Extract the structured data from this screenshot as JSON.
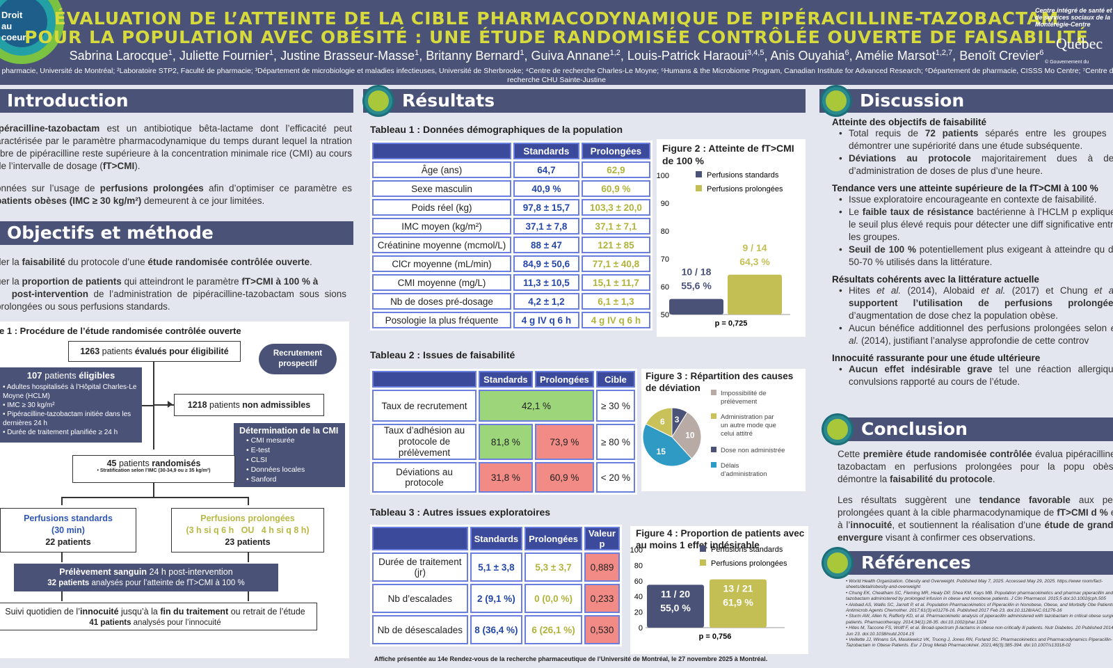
{
  "header": {
    "logo": "Droit\nau\ncoeur",
    "title_line1": "ÉVALUATION DE L’ATTEINTE DE LA CIBLE PHARMACODYNAMIQUE DE PIPÉRACILLINE-TAZOBACTAM",
    "title_line2": "POUR LA POPULATION AVEC OBÉSITÉ : UNE ÉTUDE RANDOMISÉE CONTRÔLÉE OUVERTE DE FAISABILITÉ",
    "authors": [
      {
        "name": "Sabrina Larocque",
        "sup": "1"
      },
      {
        "name": "Juliette Fournier",
        "sup": "1"
      },
      {
        "name": "Justine Brasseur-Masse",
        "sup": "1"
      },
      {
        "name": "Britanny Bernard",
        "sup": "1"
      },
      {
        "name": "Guiva Annane",
        "sup": "1,2"
      },
      {
        "name": "Louis-Patrick Haraoui",
        "sup": "3,4,5"
      },
      {
        "name": "Anis Ouyahia",
        "sup": "6"
      },
      {
        "name": "Amélie Marsot",
        "sup": "1,2,7"
      },
      {
        "name": "Benoît Crevier",
        "sup": "6"
      }
    ],
    "affiliations": "e pharmacie, Université de Montréal; ²Laboratoire STP2, Faculté de pharmacie; ³Département de microbiologie et maladies infectieuses, Université de Sherbrooke; ⁴Centre de recherche Charles-Le Moyne; ⁵Humans & the Microbiome Program, Canadian Institute for Advanced Research; ⁶Département de pharmacie, CISSS Mo Centre; ⁷Centre de recherche CHU Sainte-Justine",
    "cisss": "Centre intégré de santé et de services sociaux de la Montérégie-Centre",
    "quebec": "Québec",
    "gov": "© Gouvernement du"
  },
  "intro": {
    "heading": "Introduction",
    "p1_pre": "ipéracilline-tazobactam",
    "p1_mid": " est un antibiotique bêta-lactame dont l’efficacité peut aractérisée par le paramètre pharmacodynamique du temps durant lequel la ntration libre de pipéracilline reste supérieure à la concentration minimale rice (CMI) au cours de l’intervalle de dosage (",
    "p1_bold": "fT>CMI",
    "p1_end": ").",
    "p2_a": "onnées sur l’usage de ",
    "p2_b": "perfusions prolongées",
    "p2_c": " afin d’optimiser ce paramètre es ",
    "p2_d": "patients obèses (IMC ≥ 30 kg/m²)",
    "p2_e": " demeurent à ce jour limitées."
  },
  "objectives": {
    "heading": "Objectifs et méthode",
    "o1_a": "der la ",
    "o1_b": "faisabilité",
    "o1_c": " du protocole d’une ",
    "o1_d": "étude randomisée contrôlée ouverte",
    "o1_e": ".",
    "o2_a": "uer la ",
    "o2_b": "proportion de patients",
    "o2_c": " qui atteindront le paramètre  ",
    "o2_d": "fT>CMI à 100 % à",
    "o2_e": "post-intervention",
    "o2_f": " de l’administration de pipéracilline-tazobactam sous sions prolongées ou sous perfusions standards."
  },
  "figure1": {
    "caption": "re 1 : Procédure de l’étude randomisée contrôlée ouverte",
    "evaluated_n": "1263",
    "evaluated_a": " patients ",
    "evaluated_b": "évalués pour éligibilité",
    "recruit": "Recrutement prospectif",
    "eligible_n": "107",
    "eligible_a": " patients ",
    "eligible_b": "éligibles",
    "criteria": [
      "Adultes hospitalisés à l’Hôpital Charles-Le Moyne (HCLM)",
      "IMC ≥ 30 kg/m²",
      "Pipéracilline-tazobactam initiée dans les dernières 24 h",
      "Durée de traitement planifiée ≥ 24 h"
    ],
    "nonadm_n": "1218",
    "nonadm_a": " patients ",
    "nonadm_b": "non admissibles",
    "cmi_title": "Détermination de la CMI",
    "cmi_items": [
      "CMI mesurée",
      "E-test",
      "CLSI",
      "Données locales",
      "Sanford"
    ],
    "rand_n": "45",
    "rand_a": " patients ",
    "rand_b": "randomisés",
    "strat": "• Stratification selon l’IMC (30-34,9 ou ≥ 35 kg/m²)",
    "std_title": "Perfusions standards",
    "std_sub": "(30 min)",
    "std_n": "22 patients",
    "pro_title": "Perfusions prolongées",
    "pro_sub": "(3 h si q 6 h   OU   4 h si q 8 h)",
    "pro_n": "23 patients",
    "sample_a": "Prélèvement sanguin",
    "sample_b": " 24 h post-intervention",
    "sample_c": "32 patients",
    "sample_d": " analysés pour l’atteinte de fT>CMI à 100 %",
    "follow_a": "Suivi quotidien de l’",
    "follow_b": "innocuité",
    "follow_c": " jusqu’à la ",
    "follow_d": "fin du traitement",
    "follow_e": " ou retrait de l’étude",
    "follow_f": "41 patients",
    "follow_g": " analysés pour l’innocuité"
  },
  "results": {
    "heading": "Résultats",
    "t1_caption": "Tableau 1 : Données démographiques de la population",
    "t1_headers": [
      "",
      "Standards",
      "Prolongées"
    ],
    "t1_rows": [
      [
        "Âge (ans)",
        "64,7",
        "62,9"
      ],
      [
        "Sexe masculin",
        "40,9 %",
        "60,9 %"
      ],
      [
        "Poids réel (kg)",
        "97,8 ± 15,7",
        "103,3 ± 20,0"
      ],
      [
        "IMC moyen (kg/m²)",
        "37,1 ± 7,8",
        "37,1 ± 7,1"
      ],
      [
        "Créatinine moyenne (mcmol/L)",
        "88 ± 47",
        "121 ± 85"
      ],
      [
        "ClCr moyenne (mL/min)",
        "84,9 ± 50,6",
        "77,1 ± 40,8"
      ],
      [
        "CMI moyenne (mg/L)",
        "11,3 ± 10,5",
        "15,1 ± 11,7"
      ],
      [
        "Nb de doses pré-dosage",
        "4,2 ± 1,2",
        "6,1 ± 1,3"
      ],
      [
        "Posologie la plus fréquente",
        "4 g IV q 6 h",
        "4 g IV q 6 h"
      ]
    ],
    "t2_caption": "Tableau 2 : Issues de faisabilité",
    "t2_headers": [
      "",
      "Standards",
      "Prolongées",
      "Cible"
    ],
    "t2_r1": [
      "Taux de recrutement",
      "42,1 %",
      "≥ 30 %"
    ],
    "t2_r2": [
      "Taux d’adhésion au protocole de prélèvement",
      "81,8 %",
      "73,9 %",
      "≥ 80 %"
    ],
    "t2_r3": [
      "Déviations au protocole",
      "31,8 %",
      "60,9 %",
      "< 20 %"
    ],
    "t3_caption": "Tableau 3 : Autres issues exploratoires",
    "t3_headers": [
      "",
      "Standards",
      "Prolongées",
      "Valeur p"
    ],
    "t3_rows": [
      [
        "Durée de traitement (jr)",
        "5,1 ± 3,8",
        "5,3 ± 3,7",
        "0,889"
      ],
      [
        "Nb d’escalades",
        "2 (9,1 %)",
        "0 (0,0 %)",
        "0,233"
      ],
      [
        "Nb de désescalades",
        "8 (36,4 %)",
        "6 (26,1 %)",
        "0,530"
      ]
    ],
    "footer": "Affiche présentée au 14e Rendez-vous de la recherche pharmaceutique de l’Université de Montréal, le 27 novembre 2025 à Montréal."
  },
  "chart_data": [
    {
      "type": "bar",
      "title": "Figure 2 : Atteinte de fT>CMI de 100 %",
      "series": [
        {
          "name": "Perfusions standards",
          "values": [
            55.6
          ],
          "label": "10 / 18",
          "pct": "55,6 %"
        },
        {
          "name": "Perfusions prolongées",
          "values": [
            64.3
          ],
          "label": "9 / 14",
          "pct": "64,3 %"
        }
      ],
      "ylim": [
        50,
        100
      ],
      "yticks": [
        "50",
        "60",
        "70",
        "80",
        "90",
        "100"
      ],
      "note": "p = 0,725",
      "colors": [
        "#4a5278",
        "#c4bf55"
      ]
    },
    {
      "type": "pie",
      "title": "Figure 3 : Répartition des causes de déviation",
      "slices": [
        {
          "name": "Impossibilité de prélèvement",
          "value": 10,
          "color": "#b8aaa4"
        },
        {
          "name": "Administration par un autre mode que celui attitré",
          "value": 6,
          "color": "#c9c15a"
        },
        {
          "name": "Dose non administrée",
          "value": 3,
          "color": "#4a5278"
        },
        {
          "name": "Délais d’administration",
          "value": 15,
          "color": "#2f9ac4"
        }
      ]
    },
    {
      "type": "bar",
      "title": "Figure 4 : Proportion de patients avec au moins 1 effet indésirable",
      "series": [
        {
          "name": "Perfusions standards",
          "values": [
            55.0
          ],
          "label": "11 / 20",
          "pct": "55,0 %"
        },
        {
          "name": "Perfusions prolongées",
          "values": [
            61.9
          ],
          "label": "13 / 21",
          "pct": "61,9 %"
        }
      ],
      "ylim": [
        0,
        100
      ],
      "yticks": [
        "0",
        "20",
        "40",
        "60",
        "80",
        "100"
      ],
      "note": "p = 0,756",
      "colors": [
        "#4a5278",
        "#c4bf55"
      ]
    }
  ],
  "discussion": {
    "heading": "Discussion",
    "s1": "Atteinte des objectifs de faisabilité",
    "s1_l1_a": "Total requis de ",
    "s1_l1_b": "72 patients",
    "s1_l1_c": " séparés entre les groupes a démontrer une supériorité dans une étude subséquente.",
    "s1_l2_a": "Déviations au protocole",
    "s1_l2_b": " majoritairement dues à des d’administration de doses de plus d’une heure.",
    "s2": "Tendance vers une atteinte supérieure de la fT>CMI à 100 %",
    "s2_l1": "Issue exploratoire encourageante en contexte de faisabilité.",
    "s2_l2_a": "Le ",
    "s2_l2_b": "faible taux de résistance",
    "s2_l2_c": " bactérienne à l’HCLM p expliquer le seuil plus élevé requis pour détecter une diff significative entre les groupes.",
    "s2_l3_a": "Seuil de 100 %",
    "s2_l3_b": " potentiellement plus exigeant à atteindre qu de 50-70 % utilisés dans la littérature.",
    "s3": "Résultats cohérents avec la littérature actuelle",
    "s3_l1_a": "Hites ",
    "s3_l1_b": "et al.",
    "s3_l1_c": " (2014), Alobaid ",
    "s3_l1_d": "et al.",
    "s3_l1_e": " (2017) et Chung ",
    "s3_l1_f": "et al.",
    "s3_l1_g": "supportent l’utilisation de perfusions prolongées",
    "s3_l1_h": " d’augmentation de dose chez la population obèse.",
    "s3_l2_a": "Aucun bénéfice additionnel des perfusions prolongées selon ",
    "s3_l2_b": "et al.",
    "s3_l2_c": " (2014), justifiant l’analyse approfondie de cette controv",
    "s4": "Innocuité rassurante pour une étude ultérieure",
    "s4_l1_a": "Aucun effet indésirable grave",
    "s4_l1_b": " tel une réaction allergique convulsions rapporté au cours de l’étude."
  },
  "conclusion": {
    "heading": "Conclusion",
    "p1_a": "Cette ",
    "p1_b": "première étude randomisée contrôlée",
    "p1_c": " évalua pipéracilline-tazobactam en perfusions prolongées pour la popu obèse démontre la ",
    "p1_d": "faisabilité du protocole",
    "p1_e": ".",
    "p2_a": "Les résultats suggèrent une ",
    "p2_b": "tendance favorable",
    "p2_c": " aux perf prolongées quant à la cible pharmacodynamique de ",
    "p2_d": "fT>CMI d %",
    "p2_e": " et à l’",
    "p2_f": "innocuité",
    "p2_g": ", et soutiennent la réalisation d’une ",
    "p2_h": "étude de grande envergure",
    "p2_i": " visant à confirmer ces observations."
  },
  "references": {
    "heading": "Références",
    "items": [
      "World Health Organization. Obesity and Overweight. Published May 7, 2025. Accessed May 29, 2025. https://www room/fact-sheets/detail/obesity-and-overweight",
      "Chung EK, Cheatham SC, Fleming MR, Healy DP, Shea KM, Kays MB. Population pharmacokinetics and pharmac piperacillin and tazobactam administered by prolonged infusion in obese and nonobese patients. J Clin Pharmacol. 2015;5 doi:10.1002/jcph.505",
      "Alobaid AS, Wallis SC, Jarrett P, et al. Population Pharmacokinetics of Piperacillin in Nonobese, Obese, and Morbidly Obe Patients. Antimicrob Agents Chemother. 2017;61(3):e01276-16. Published 2017 Feb 23. doi:10.1128/AAC.01276-16",
      "Sturm AW, Allen N, Rafferty KD, et al. Pharmacokinetic analysis of piperacillin administered with tazobactam in critical obese surgical patients. Pharmacotherapy. 2014;34(1):28-35. doi:10.1002/phar.1324",
      "Hites M, Taccone FS, Wolff F, et al. Broad-spectrum β-lactams in obese non-critically ill patients. Nutr Diabetes. 20 Published 2014 Jun 23. doi:10.1038/nutd.2014.15",
      "Veillette JJ, Winans SA, Maskiewicz VK, Truong J, Jones RN, Forland SC. Pharmacokinetics and Pharmacodynamics Piperacillin-Tazobactam in Obese Patients. Eur J Drug Metab Pharmacokinet. 2021;46(3):385-394. doi:10.1007/s13318-02"
    ]
  }
}
